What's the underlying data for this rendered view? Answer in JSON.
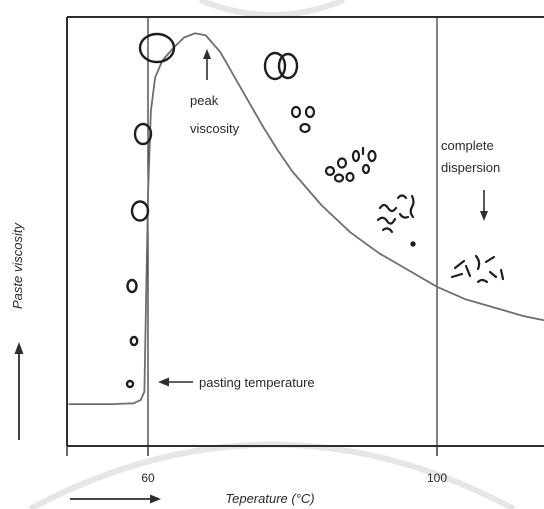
{
  "chart_data": {
    "type": "line",
    "title": "",
    "xlabel": "Teperature (°C)",
    "ylabel": "Paste viscosity",
    "x_ticks": [
      60,
      100
    ],
    "xlim": [
      49,
      115
    ],
    "ylim": [
      0,
      100
    ],
    "grid": false,
    "legend": "none",
    "series": [
      {
        "points": [
          [
            49,
            10
          ],
          [
            55,
            10
          ],
          [
            58,
            10.2
          ],
          [
            59,
            11
          ],
          [
            59.5,
            13
          ],
          [
            60,
            60
          ],
          [
            60.4,
            80
          ],
          [
            61,
            88
          ],
          [
            62,
            92
          ],
          [
            63.5,
            95
          ],
          [
            65,
            97.5
          ],
          [
            66.5,
            98.5
          ],
          [
            68,
            98
          ],
          [
            70,
            94
          ],
          [
            72,
            88
          ],
          [
            74,
            82
          ],
          [
            76,
            76
          ],
          [
            78,
            70.5
          ],
          [
            80,
            65.5
          ],
          [
            84,
            57.5
          ],
          [
            88,
            51
          ],
          [
            92,
            46
          ],
          [
            96,
            42
          ],
          [
            100,
            38
          ],
          [
            104,
            35
          ],
          [
            108,
            33
          ],
          [
            112,
            31
          ],
          [
            115,
            30
          ]
        ]
      }
    ],
    "annotations": [
      {
        "text_lines": [
          "peak",
          "viscosity"
        ],
        "arrow": "up"
      },
      {
        "text_lines": [
          "complete",
          "dispersion"
        ],
        "arrow": "down"
      },
      {
        "text_lines": [
          "pasting temperature"
        ],
        "arrow": "left"
      }
    ]
  },
  "colors": {
    "curve": "#6e6e6e",
    "frame": "#2e2e2e",
    "text": "#2a2a2a",
    "watermark": "#e6e6e6"
  },
  "icons": [
    "starch-granule-stages"
  ]
}
